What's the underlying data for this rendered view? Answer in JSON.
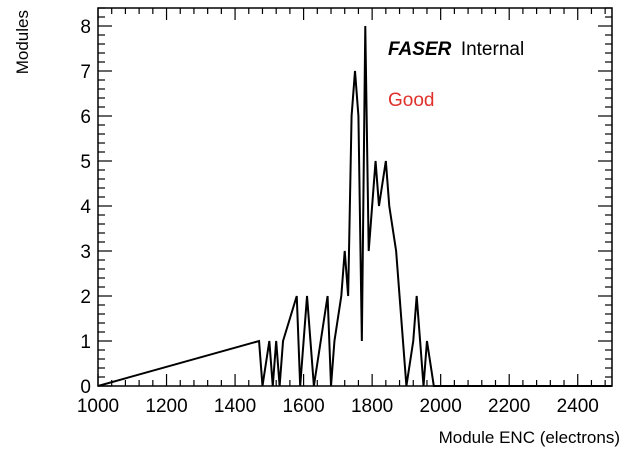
{
  "chart_data": {
    "type": "bar",
    "histogram": true,
    "title": "",
    "xlabel": "Module ENC (electrons)",
    "ylabel": "Modules",
    "xlim": [
      1000,
      2500
    ],
    "ylim": [
      0,
      8.4
    ],
    "bin_width": 10,
    "x_ticks": [
      1000,
      1200,
      1400,
      1600,
      1800,
      2000,
      2200,
      2400
    ],
    "y_ticks": [
      0,
      1,
      2,
      3,
      4,
      5,
      6,
      7,
      8
    ],
    "grid": false,
    "bins": [
      {
        "x": 1470,
        "value": 1
      },
      {
        "x": 1500,
        "value": 1
      },
      {
        "x": 1520,
        "value": 1
      },
      {
        "x": 1540,
        "value": 1
      },
      {
        "x": 1550,
        "value": 1
      },
      {
        "x": 1560,
        "value": 1
      },
      {
        "x": 1570,
        "value": 1
      },
      {
        "x": 1580,
        "value": 2
      },
      {
        "x": 1610,
        "value": 2
      },
      {
        "x": 1620,
        "value": 1
      },
      {
        "x": 1650,
        "value": 1
      },
      {
        "x": 1660,
        "value": 1
      },
      {
        "x": 1670,
        "value": 2
      },
      {
        "x": 1690,
        "value": 1
      },
      {
        "x": 1700,
        "value": 1
      },
      {
        "x": 1710,
        "value": 2
      },
      {
        "x": 1720,
        "value": 3
      },
      {
        "x": 1730,
        "value": 2
      },
      {
        "x": 1740,
        "value": 6
      },
      {
        "x": 1750,
        "value": 7
      },
      {
        "x": 1760,
        "value": 6
      },
      {
        "x": 1770,
        "value": 1
      },
      {
        "x": 1780,
        "value": 8
      },
      {
        "x": 1790,
        "value": 3
      },
      {
        "x": 1800,
        "value": 3
      },
      {
        "x": 1810,
        "value": 5
      },
      {
        "x": 1820,
        "value": 4
      },
      {
        "x": 1830,
        "value": 4
      },
      {
        "x": 1840,
        "value": 5
      },
      {
        "x": 1850,
        "value": 4
      },
      {
        "x": 1860,
        "value": 4
      },
      {
        "x": 1870,
        "value": 3
      },
      {
        "x": 1880,
        "value": 2
      },
      {
        "x": 1890,
        "value": 1
      },
      {
        "x": 1920,
        "value": 1
      },
      {
        "x": 1930,
        "value": 2
      },
      {
        "x": 1940,
        "value": 1
      },
      {
        "x": 1960,
        "value": 1
      },
      {
        "x": 1970,
        "value": 1
      }
    ]
  },
  "annotations": {
    "experiment": "FASER",
    "status": "Internal",
    "selection": "Good",
    "selection_color": "#e0302a"
  }
}
